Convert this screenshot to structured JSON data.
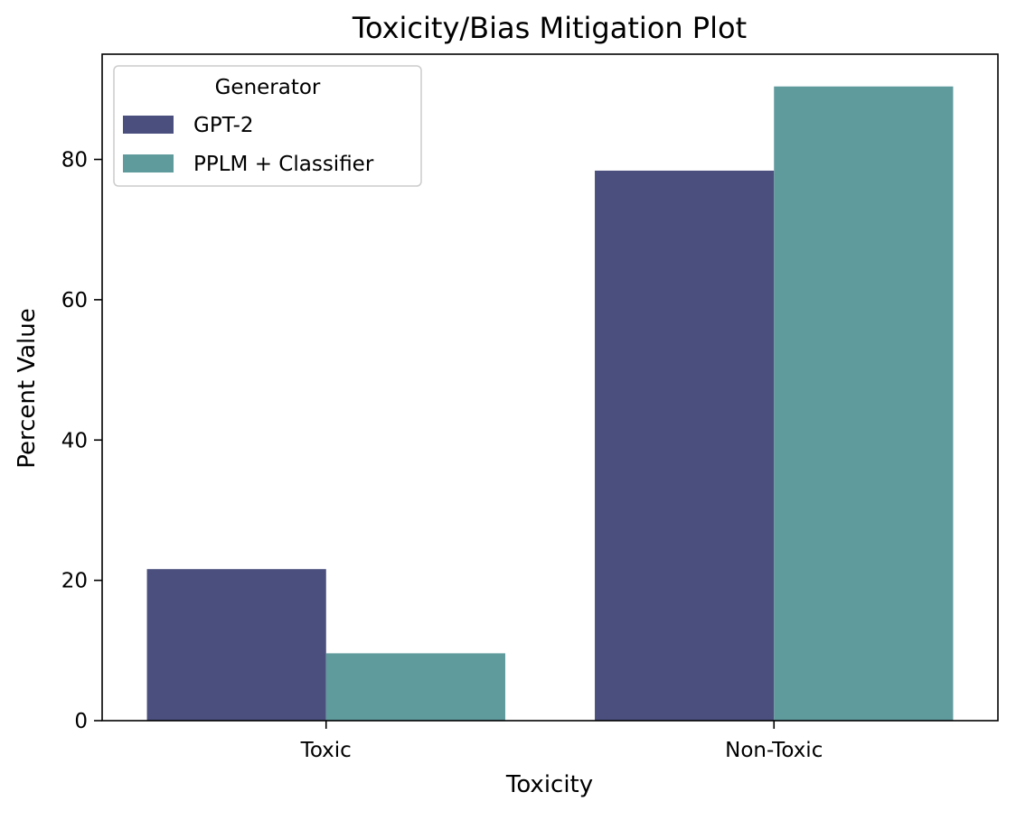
{
  "chart_data": {
    "type": "bar",
    "title": "Toxicity/Bias Mitigation Plot",
    "xlabel": "Toxicity",
    "ylabel": "Percent Value",
    "categories": [
      "Toxic",
      "Non-Toxic"
    ],
    "series": [
      {
        "name": "GPT-2",
        "values": [
          21.6,
          78.4
        ],
        "color": "#4a4f7e"
      },
      {
        "name": "PPLM + Classifier",
        "values": [
          9.6,
          90.4
        ],
        "color": "#5f9a9c"
      }
    ],
    "ylim": [
      0,
      95
    ],
    "yticks": [
      0,
      20,
      40,
      60,
      80
    ],
    "legend": {
      "title": "Generator",
      "placement": "top-left"
    },
    "grid": false
  }
}
